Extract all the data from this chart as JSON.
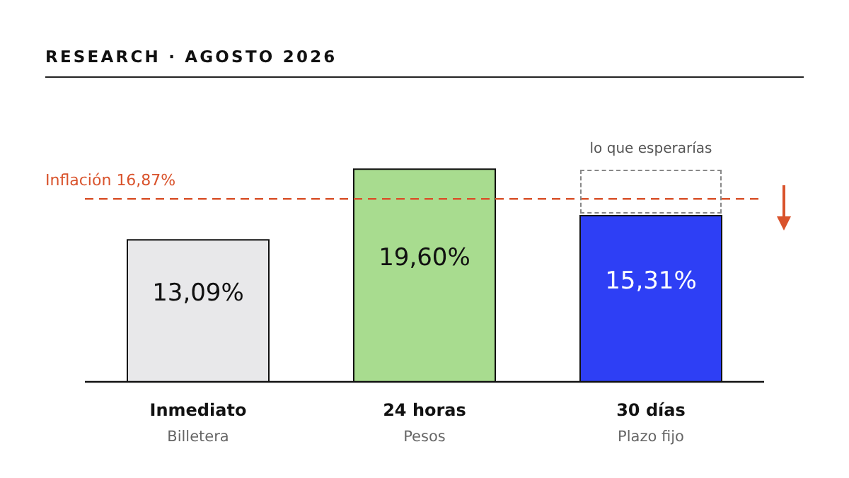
{
  "chart_data": {
    "type": "bar",
    "title": "RESEARCH · AGOSTO 2026",
    "categories": [
      "Inmediato\nBilletera",
      "24 horas\nPesos",
      "30 días\nPlazo fijo"
    ],
    "values": [
      13.09,
      19.6,
      15.31
    ],
    "colors": [
      "#e8e8ea",
      "#a8dc8f",
      "#2e3ff5"
    ],
    "value_labels": [
      "13,09%",
      "19,60%",
      "15,31%"
    ],
    "ref_lines": [
      {
        "axis": "y",
        "value": 16.87,
        "label": "Inflación 16,87%",
        "color": "#d9532c",
        "line_style": "dashed"
      }
    ],
    "annotations": [
      "lo que esperarías"
    ]
  }
}
